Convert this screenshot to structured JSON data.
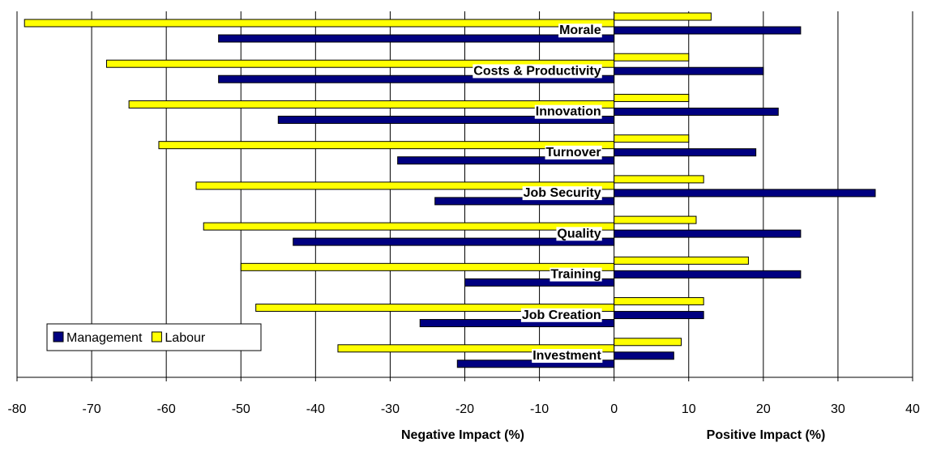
{
  "chart_data": {
    "type": "bar",
    "orientation": "horizontal",
    "categories": [
      "Morale",
      "Costs & Productivity",
      "Innovation",
      "Turnover",
      "Job Security",
      "Quality",
      "Training",
      "Job Creation",
      "Investment"
    ],
    "series": [
      {
        "name": "Management",
        "color": "#000080",
        "values": [
          -53,
          -53,
          -45,
          -29,
          -24,
          -43,
          -20,
          -26,
          -21
        ],
        "positive_values": [
          25,
          20,
          22,
          19,
          35,
          25,
          25,
          12,
          8
        ]
      },
      {
        "name": "Labour",
        "color": "#ffff00",
        "values": [
          -79,
          -68,
          -65,
          -61,
          -56,
          -55,
          -50,
          -48,
          -37
        ],
        "positive_values": [
          13,
          10,
          10,
          10,
          12,
          11,
          18,
          12,
          9
        ]
      }
    ],
    "xlim": [
      -80,
      40
    ],
    "xticks": [
      -80,
      -70,
      -60,
      -50,
      -40,
      -30,
      -20,
      -10,
      0,
      10,
      20,
      30,
      40
    ],
    "negative_axis_label": "Negative Impact (%)",
    "positive_axis_label": "Positive Impact (%)",
    "grid": true,
    "legend": "lower left"
  }
}
